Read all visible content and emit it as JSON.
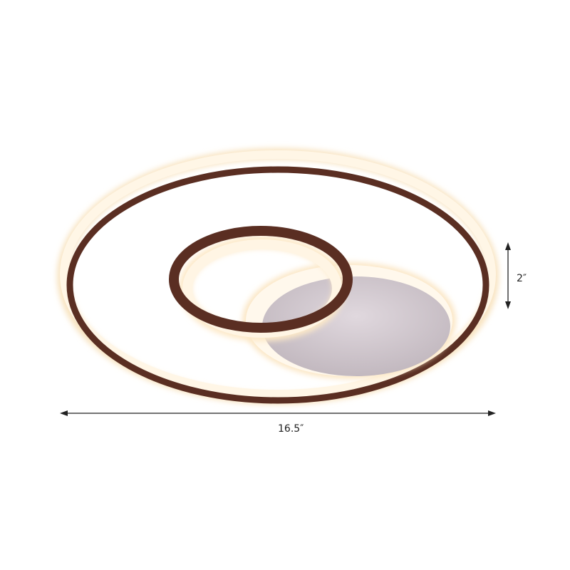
{
  "product": {
    "colors": {
      "frame": "#5a2e22",
      "glow": "#fff3dc",
      "disc": "#cfc6cc"
    }
  },
  "dimensions": {
    "width_label": "16.5″",
    "height_label": "2″"
  }
}
